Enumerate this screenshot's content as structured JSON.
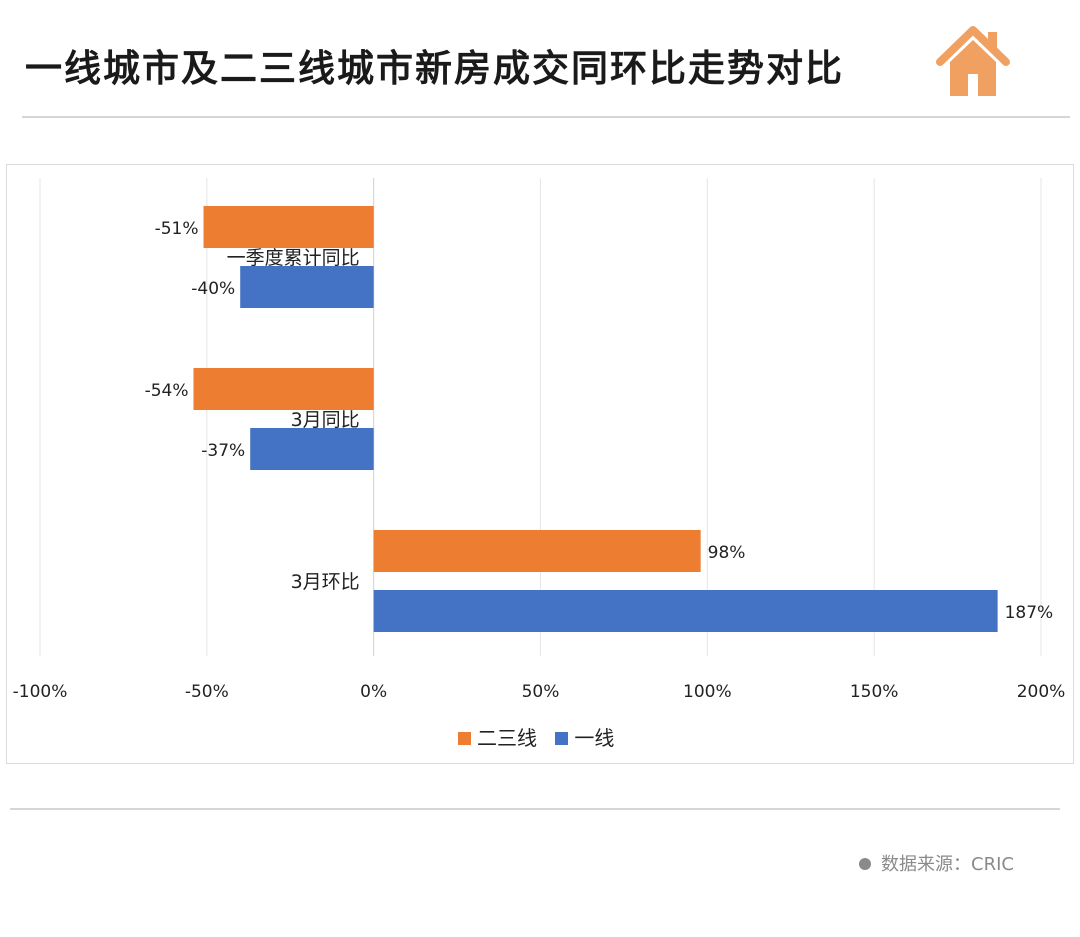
{
  "header": {
    "title": "一线城市及二三线城市新房成交同环比走势对比",
    "icon": "house-icon"
  },
  "footer": {
    "source": "数据来源：CRIC"
  },
  "colors": {
    "series_a": "#ED7D31",
    "series_b": "#4472C4",
    "grid": "#e6e6e6",
    "axis": "#d0d0d0",
    "icon": "#F0A060"
  },
  "chart_data": {
    "type": "bar",
    "orientation": "horizontal",
    "categories": [
      "一季度累计同比",
      "3月同比",
      "3月环比"
    ],
    "series": [
      {
        "name": "二三线",
        "values": [
          -51,
          -54,
          98
        ],
        "labels": [
          "-51%",
          "-54%",
          "98%"
        ]
      },
      {
        "name": "一线",
        "values": [
          -40,
          -37,
          187
        ],
        "labels": [
          "-40%",
          "-37%",
          "187%"
        ]
      }
    ],
    "xlim": [
      -100,
      200
    ],
    "xticks": [
      -100,
      -50,
      0,
      50,
      100,
      150,
      200
    ],
    "xtick_labels": [
      "-100%",
      "-50%",
      "0%",
      "50%",
      "100%",
      "150%",
      "200%"
    ],
    "legend": [
      "二三线",
      "一线"
    ],
    "legend_position": "bottom",
    "grid": true
  }
}
